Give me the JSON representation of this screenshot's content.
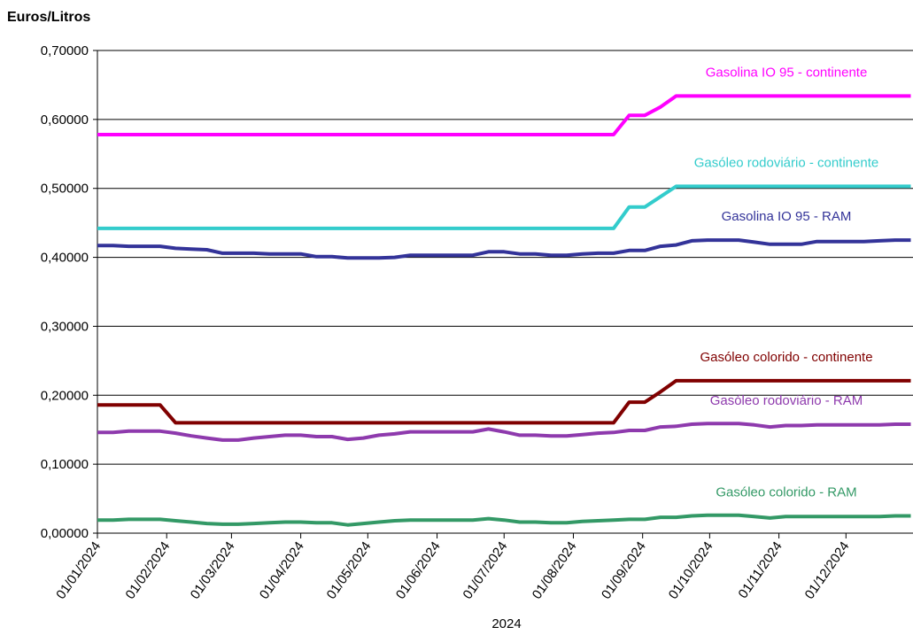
{
  "chart_data": {
    "type": "line",
    "y_title": "Euros/Litros",
    "x_label": "2024",
    "x": [
      "01/01/2024",
      "08/01/2024",
      "15/01/2024",
      "22/01/2024",
      "29/01/2024",
      "05/02/2024",
      "12/02/2024",
      "19/02/2024",
      "26/02/2024",
      "04/03/2024",
      "11/03/2024",
      "18/03/2024",
      "25/03/2024",
      "01/04/2024",
      "08/04/2024",
      "15/04/2024",
      "22/04/2024",
      "29/04/2024",
      "06/05/2024",
      "13/05/2024",
      "20/05/2024",
      "27/05/2024",
      "03/06/2024",
      "10/06/2024",
      "17/06/2024",
      "24/06/2024",
      "01/07/2024",
      "08/07/2024",
      "15/07/2024",
      "22/07/2024",
      "29/07/2024",
      "05/08/2024",
      "12/08/2024",
      "19/08/2024",
      "26/08/2024",
      "02/09/2024",
      "09/09/2024",
      "16/09/2024",
      "23/09/2024",
      "30/09/2024",
      "07/10/2024",
      "14/10/2024",
      "21/10/2024",
      "28/10/2024",
      "04/11/2024",
      "11/11/2024",
      "18/11/2024",
      "25/11/2024",
      "02/12/2024",
      "09/12/2024",
      "16/12/2024",
      "23/12/2024",
      "30/12/2024"
    ],
    "xlim": [
      "01/01/2024",
      "31/12/2024"
    ],
    "xticks": [
      "01/01/2024",
      "01/02/2024",
      "01/03/2024",
      "01/04/2024",
      "01/05/2024",
      "01/06/2024",
      "01/07/2024",
      "01/08/2024",
      "01/09/2024",
      "01/10/2024",
      "01/11/2024",
      "01/12/2024"
    ],
    "ylim": [
      0,
      0.7
    ],
    "yticks": [
      {
        "value": 0,
        "label": "0,00000"
      },
      {
        "value": 0.1,
        "label": "0,10000"
      },
      {
        "value": 0.2,
        "label": "0,20000"
      },
      {
        "value": 0.3,
        "label": "0,30000"
      },
      {
        "value": 0.4,
        "label": "0,40000"
      },
      {
        "value": 0.5,
        "label": "0,50000"
      },
      {
        "value": 0.6,
        "label": "0,60000"
      },
      {
        "value": 0.7,
        "label": "0,70000"
      }
    ],
    "grid": true,
    "series": [
      {
        "name": "Gasolina IO 95 - continente",
        "color": "#ff00ff",
        "values": [
          0.578,
          0.578,
          0.578,
          0.578,
          0.578,
          0.578,
          0.578,
          0.578,
          0.578,
          0.578,
          0.578,
          0.578,
          0.578,
          0.578,
          0.578,
          0.578,
          0.578,
          0.578,
          0.578,
          0.578,
          0.578,
          0.578,
          0.578,
          0.578,
          0.578,
          0.578,
          0.578,
          0.578,
          0.578,
          0.578,
          0.578,
          0.578,
          0.578,
          0.578,
          0.606,
          0.606,
          0.618,
          0.634,
          0.634,
          0.634,
          0.634,
          0.634,
          0.634,
          0.634,
          0.634,
          0.634,
          0.634,
          0.634,
          0.634,
          0.634,
          0.634,
          0.634,
          0.634
        ]
      },
      {
        "name": "Gasóleo rodoviário - continente",
        "color": "#33cccc",
        "values": [
          0.442,
          0.442,
          0.442,
          0.442,
          0.442,
          0.442,
          0.442,
          0.442,
          0.442,
          0.442,
          0.442,
          0.442,
          0.442,
          0.442,
          0.442,
          0.442,
          0.442,
          0.442,
          0.442,
          0.442,
          0.442,
          0.442,
          0.442,
          0.442,
          0.442,
          0.442,
          0.442,
          0.442,
          0.442,
          0.442,
          0.442,
          0.442,
          0.442,
          0.442,
          0.473,
          0.473,
          0.488,
          0.503,
          0.503,
          0.503,
          0.503,
          0.503,
          0.503,
          0.503,
          0.503,
          0.503,
          0.503,
          0.503,
          0.503,
          0.503,
          0.503,
          0.503,
          0.503
        ]
      },
      {
        "name": "Gasolina IO 95 - RAM",
        "color": "#333399",
        "values": [
          0.417,
          0.417,
          0.416,
          0.416,
          0.416,
          0.413,
          0.412,
          0.411,
          0.406,
          0.406,
          0.406,
          0.405,
          0.405,
          0.405,
          0.401,
          0.401,
          0.399,
          0.399,
          0.399,
          0.4,
          0.403,
          0.403,
          0.403,
          0.403,
          0.403,
          0.408,
          0.408,
          0.405,
          0.405,
          0.403,
          0.403,
          0.405,
          0.406,
          0.406,
          0.41,
          0.41,
          0.416,
          0.418,
          0.424,
          0.425,
          0.425,
          0.425,
          0.422,
          0.419,
          0.419,
          0.419,
          0.423,
          0.423,
          0.423,
          0.423,
          0.424,
          0.425,
          0.425
        ]
      },
      {
        "name": "Gasóleo colorido - continente",
        "color": "#800000",
        "values": [
          0.186,
          0.186,
          0.186,
          0.186,
          0.186,
          0.16,
          0.16,
          0.16,
          0.16,
          0.16,
          0.16,
          0.16,
          0.16,
          0.16,
          0.16,
          0.16,
          0.16,
          0.16,
          0.16,
          0.16,
          0.16,
          0.16,
          0.16,
          0.16,
          0.16,
          0.16,
          0.16,
          0.16,
          0.16,
          0.16,
          0.16,
          0.16,
          0.16,
          0.16,
          0.19,
          0.19,
          0.205,
          0.221,
          0.221,
          0.221,
          0.221,
          0.221,
          0.221,
          0.221,
          0.221,
          0.221,
          0.221,
          0.221,
          0.221,
          0.221,
          0.221,
          0.221,
          0.221
        ]
      },
      {
        "name": "Gasóleo rodoviário - RAM",
        "color": "#8e3aad",
        "values": [
          0.146,
          0.146,
          0.148,
          0.148,
          0.148,
          0.145,
          0.141,
          0.138,
          0.135,
          0.135,
          0.138,
          0.14,
          0.142,
          0.142,
          0.14,
          0.14,
          0.136,
          0.138,
          0.142,
          0.144,
          0.147,
          0.147,
          0.147,
          0.147,
          0.147,
          0.151,
          0.147,
          0.142,
          0.142,
          0.141,
          0.141,
          0.143,
          0.145,
          0.146,
          0.149,
          0.149,
          0.154,
          0.155,
          0.158,
          0.159,
          0.159,
          0.159,
          0.157,
          0.154,
          0.156,
          0.156,
          0.157,
          0.157,
          0.157,
          0.157,
          0.157,
          0.158,
          0.158
        ]
      },
      {
        "name": "Gasóleo colorido - RAM",
        "color": "#339966",
        "values": [
          0.019,
          0.019,
          0.02,
          0.02,
          0.02,
          0.018,
          0.016,
          0.014,
          0.013,
          0.013,
          0.014,
          0.015,
          0.016,
          0.016,
          0.015,
          0.015,
          0.012,
          0.014,
          0.016,
          0.018,
          0.019,
          0.019,
          0.019,
          0.019,
          0.019,
          0.021,
          0.019,
          0.016,
          0.016,
          0.015,
          0.015,
          0.017,
          0.018,
          0.019,
          0.02,
          0.02,
          0.023,
          0.023,
          0.025,
          0.026,
          0.026,
          0.026,
          0.024,
          0.022,
          0.024,
          0.024,
          0.024,
          0.024,
          0.024,
          0.024,
          0.024,
          0.025,
          0.025
        ]
      }
    ]
  }
}
